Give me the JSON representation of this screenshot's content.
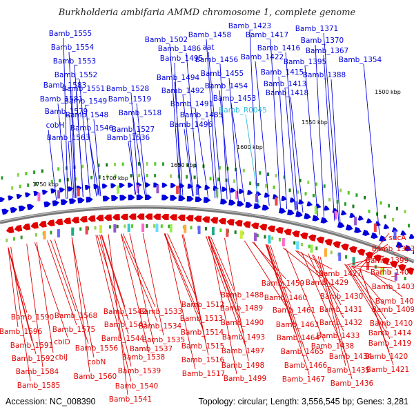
{
  "title": "Burkholderia ambifaria AMMD chromosome 1, complete genome",
  "accession": "Accession: NC_008390",
  "summary": "Topology: circular; Length: 3,556,545 bp; Genes: 3,281",
  "colors": {
    "forward": "#0000dd",
    "reverse": "#e00000",
    "rna": "#33bbdd",
    "backbone": "#888888"
  },
  "kbp_ticks": [
    "1500 kbp",
    "1550 kbp",
    "1600 kbp",
    "1650 kbp",
    "1700 kbp",
    "1750 kbp"
  ],
  "forward_labels": [
    "Bamb_1555",
    "Bamb_1554",
    "Bamb_1553",
    "Bamb_1552",
    "Bamb_1583",
    "Bamb_1551",
    "Bamb_1581",
    "Bamb_1549",
    "Bamb_1579",
    "Bamb_1548",
    "cobH",
    "Bamb_1546",
    "Bamb_1563",
    "Bamb_1528",
    "Bamb_1519",
    "Bamb_1518",
    "Bamb_1527",
    "Bamb_1536",
    "Bamb_1502",
    "Bamb_1486",
    "Bamb_1495",
    "Bamb_1494",
    "Bamb_1492",
    "Bamb_1491",
    "Bamb_1485",
    "Bamb_1496",
    "Bamb_1458",
    "aat",
    "Bamb_1456",
    "Bamb_1455",
    "Bamb_1454",
    "Bamb_1453",
    "Bamb_1423",
    "Bamb_1417",
    "Bamb_1416",
    "Bamb_1422",
    "Bamb_1415",
    "Bamb_1413",
    "Bamb_1418",
    "Bamb_1371",
    "Bamb_1370",
    "Bamb_1367",
    "Bamb_1395",
    "Bamb_1354",
    "Bamb_1388"
  ],
  "rna_label": "Bamb_R0045",
  "reverse_labels": [
    "sucA",
    "Bamb_1393",
    "Bamb_1399",
    "Bamb_1400",
    "Bamb_1403",
    "Bamb_1405",
    "Bamb_1409",
    "Bamb_1410",
    "Bamb_1414",
    "Bamb_1419",
    "Bamb_1420",
    "Bamb_1421",
    "Bamb_1427",
    "Bamb_1429",
    "Bamb_1430",
    "Bamb_1431",
    "Bamb_1432",
    "Bamb_1433",
    "Bamb_1438",
    "Bamb_1434",
    "Bamb_1435",
    "Bamb_1436",
    "Bamb_1459",
    "Bamb_1460",
    "Bamb_1461",
    "Bamb_1463",
    "Bamb_1464",
    "Bamb_1465",
    "Bamb_1466",
    "Bamb_1467",
    "Bamb_1488",
    "Bamb_1489",
    "Bamb_1490",
    "Bamb_1493",
    "Bamb_1497",
    "Bamb_1498",
    "Bamb_1499",
    "Bamb_1512",
    "Bamb_1513",
    "Bamb_1514",
    "Bamb_1515",
    "Bamb_1516",
    "Bamb_1517",
    "Bamb_1533",
    "Bamb_1534",
    "Bamb_1535",
    "Bamb_1537",
    "Bamb_1538",
    "Bamb_1539",
    "Bamb_1540",
    "Bamb_1541",
    "Bamb_1542",
    "Bamb_1543",
    "Bamb_1544",
    "Bamb_1556",
    "Bamb_1560",
    "cobN",
    "Bamb_1568",
    "Bamb_1575",
    "cbiD",
    "cbiJ",
    "Bamb_1590",
    "Bamb_1596",
    "Bamb_1591",
    "Bamb_1592",
    "Bamb_1584",
    "Bamb_1585"
  ]
}
